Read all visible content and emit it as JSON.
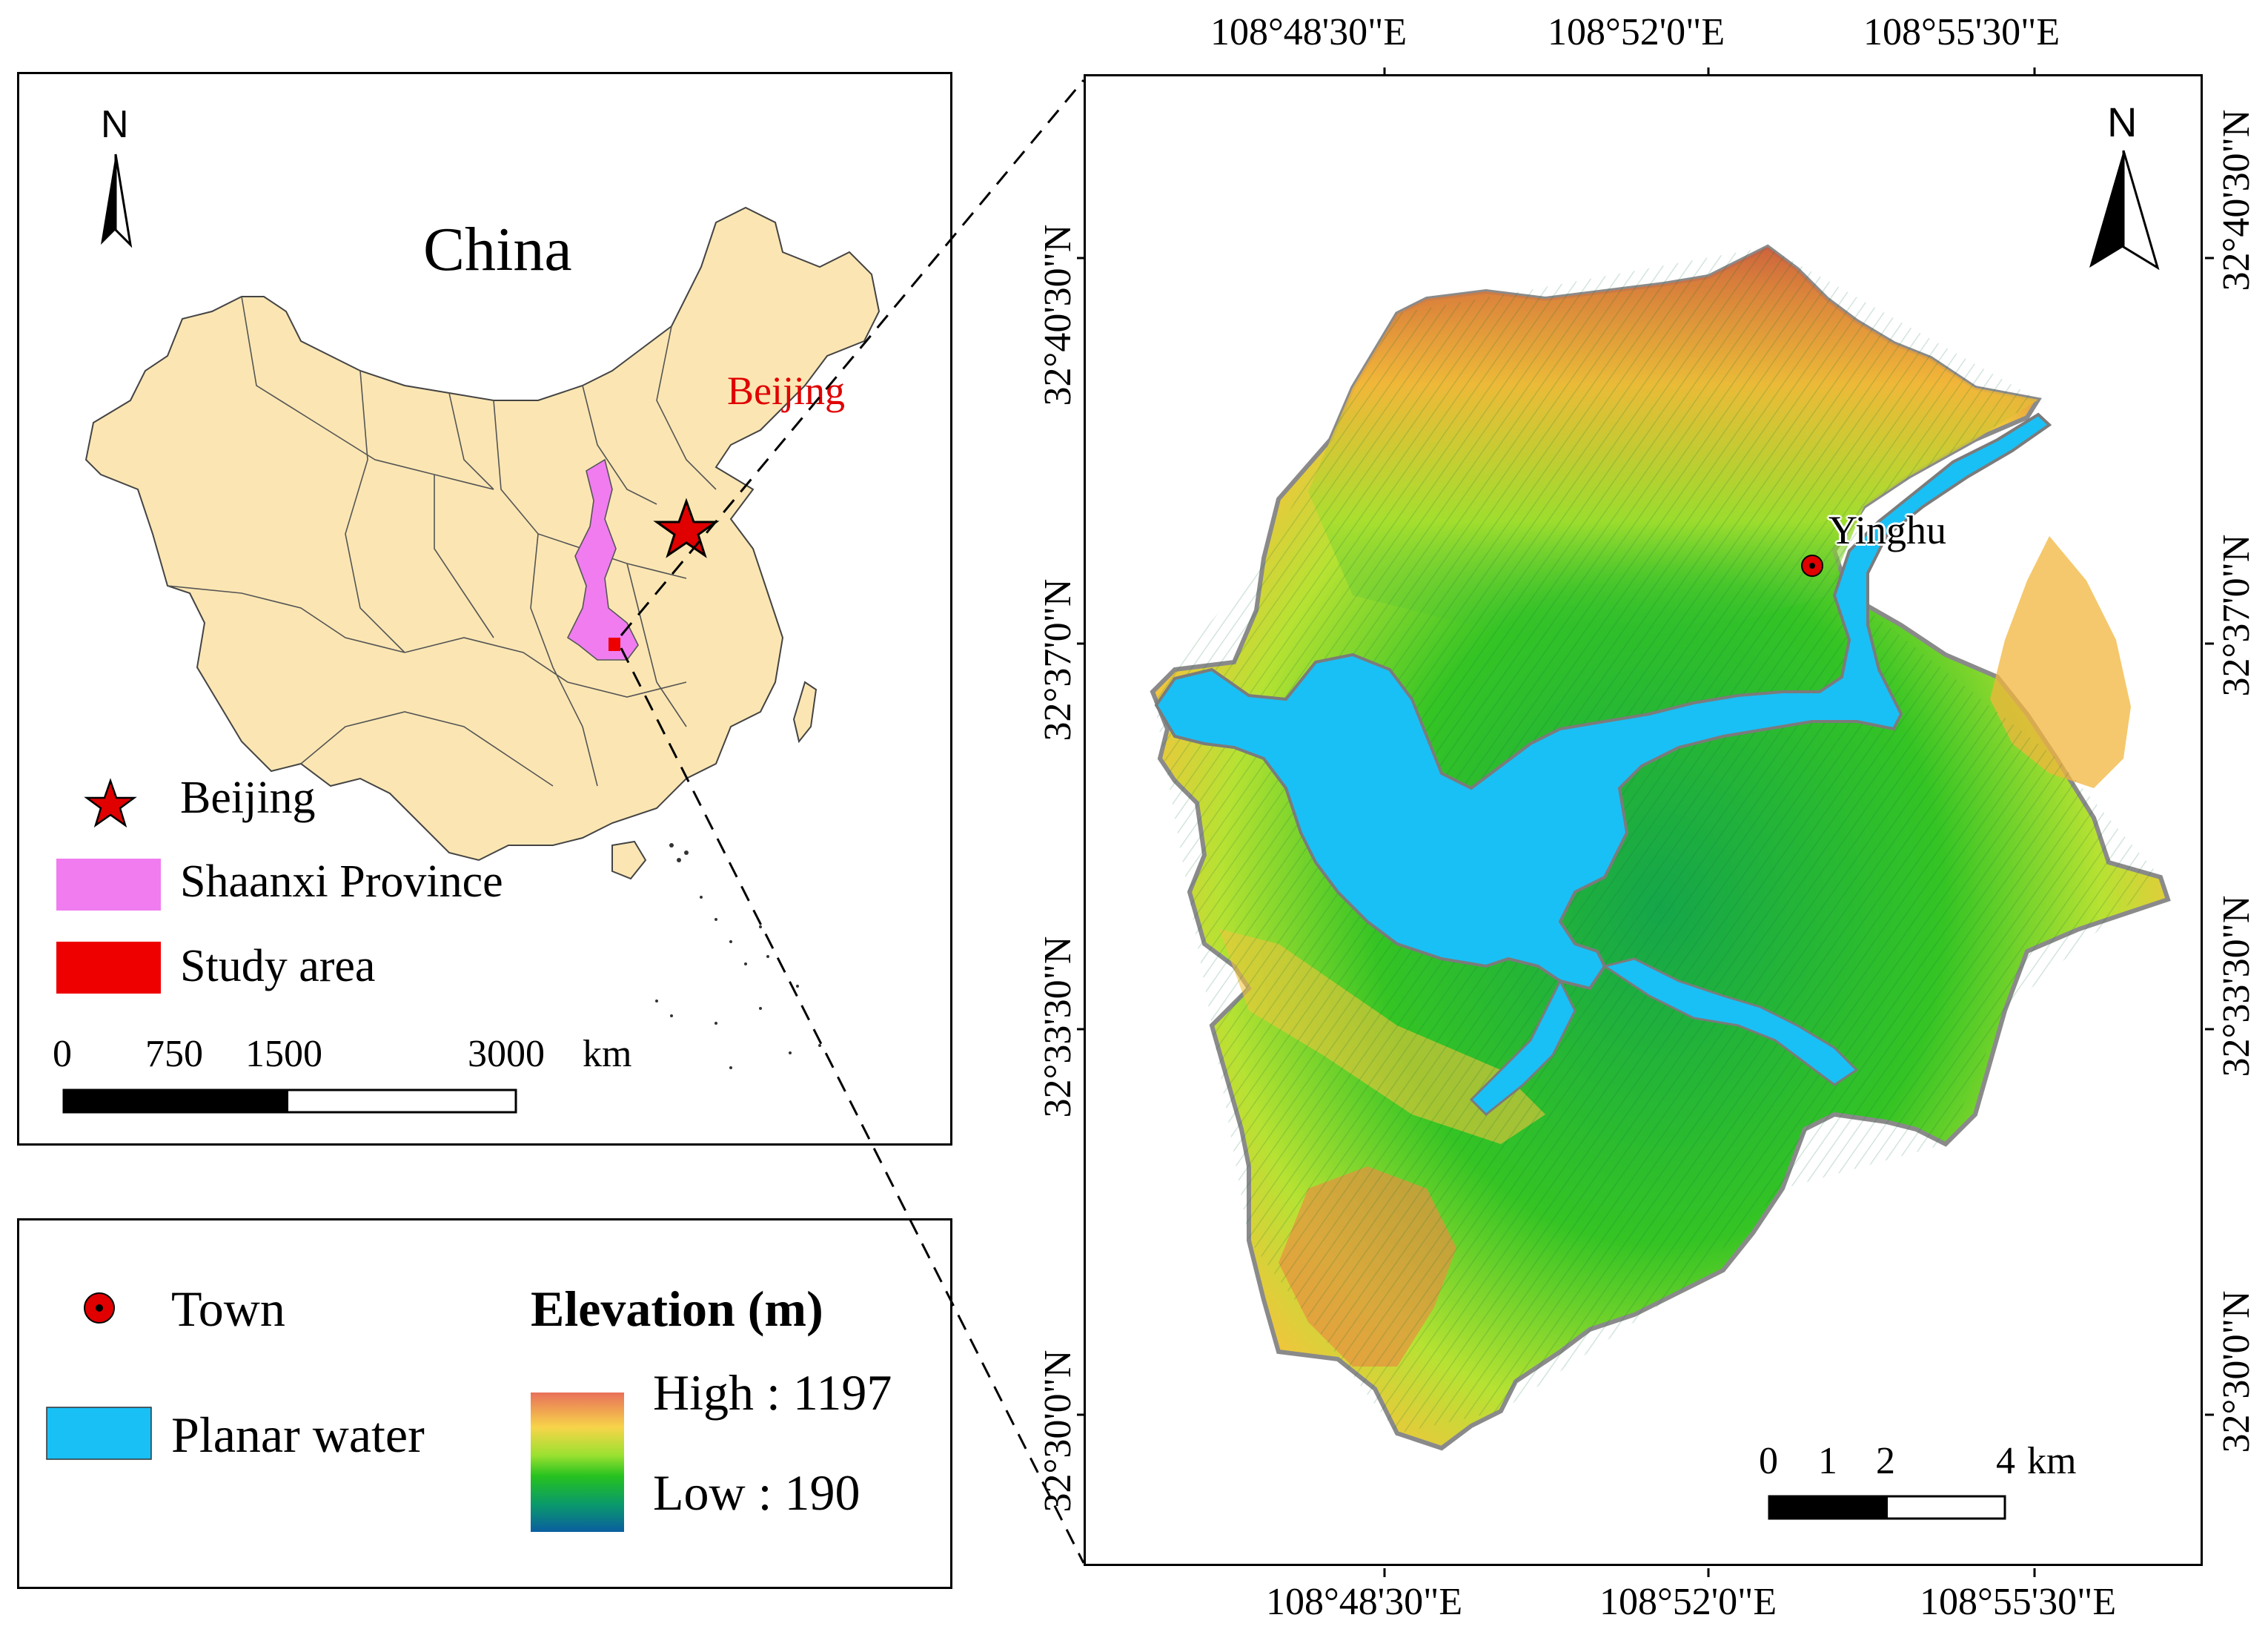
{
  "inset": {
    "north_label": "N",
    "country_label": "China",
    "capital_label": "Beijing",
    "legend": [
      {
        "label": "Beijing",
        "symbol": "star",
        "color": "#e00000"
      },
      {
        "label": "Shaanxi Province",
        "symbol": "box",
        "color": "#f07cf0"
      },
      {
        "label": "Study area",
        "symbol": "box",
        "color": "#ee0000"
      }
    ],
    "scalebar": {
      "ticks": [
        "0",
        "750",
        "1500",
        "3000"
      ],
      "unit": "km"
    }
  },
  "legend_panel": {
    "town_label": "Town",
    "water_label": "Planar water",
    "elevation_title": "Elevation (m)",
    "high_label": "High : 1197",
    "low_label": "Low : 190",
    "colors": {
      "town": "#e00000",
      "water": "#19c0f5",
      "ramp": [
        "#e8705a",
        "#f7d44a",
        "#9be130",
        "#26c21f",
        "#0a9a6a",
        "#0a5fa0"
      ]
    }
  },
  "main_map": {
    "north_label": "N",
    "town_name": "Yinghu",
    "top_lon": [
      "108°48'30\"E",
      "108°52'0\"E",
      "108°55'30\"E"
    ],
    "bottom_lon": [
      "108°48'30\"E",
      "108°52'0\"E",
      "108°55'30\"E"
    ],
    "left_lat": [
      "32°40'30\"N",
      "32°37'0\"N",
      "32°33'30\"N",
      "32°30'0\"N"
    ],
    "right_lat": [
      "32°40'30\"N",
      "32°37'0\"N",
      "32°33'30\"N",
      "32°30'0\"N"
    ],
    "scalebar": {
      "ticks": [
        "0",
        "1",
        "2",
        "4"
      ],
      "unit": "km"
    }
  }
}
